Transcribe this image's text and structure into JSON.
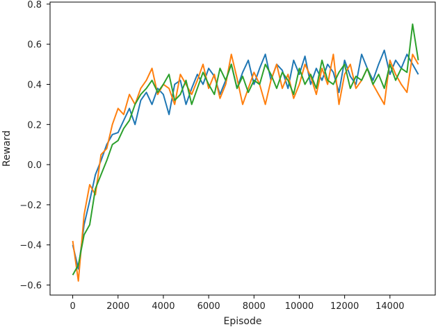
{
  "chart_data": {
    "type": "line",
    "title": "",
    "xlabel": "Episode",
    "ylabel": "Reward",
    "xlim": [
      -1000,
      16000
    ],
    "ylim": [
      -0.65,
      0.81
    ],
    "x_ticks": [
      0,
      2000,
      4000,
      6000,
      8000,
      10000,
      12000,
      14000
    ],
    "x_tick_labels": [
      "0",
      "2000",
      "4000",
      "6000",
      "8000",
      "10000",
      "12000",
      "14000"
    ],
    "y_ticks": [
      -0.6,
      -0.4,
      -0.2,
      0.0,
      0.2,
      0.4,
      0.6,
      0.8
    ],
    "y_tick_labels": [
      "−0.6",
      "−0.4",
      "−0.2",
      "0.0",
      "0.2",
      "0.4",
      "0.6",
      "0.8"
    ],
    "grid": false,
    "legend": "none",
    "x": [
      0,
      250,
      500,
      750,
      1000,
      1250,
      1500,
      1750,
      2000,
      2250,
      2500,
      2750,
      3000,
      3250,
      3500,
      3750,
      4000,
      4250,
      4500,
      4750,
      5000,
      5250,
      5500,
      5750,
      6000,
      6250,
      6500,
      6750,
      7000,
      7250,
      7500,
      7750,
      8000,
      8250,
      8500,
      8750,
      9000,
      9250,
      9500,
      9750,
      10000,
      10250,
      10500,
      10750,
      11000,
      11250,
      11500,
      11750,
      12000,
      12250,
      12500,
      12750,
      13000,
      13250,
      13500,
      13750,
      14000,
      14250,
      14500,
      14750,
      15000,
      15250
    ],
    "series": [
      {
        "color": "#1f77b4",
        "values": [
          -0.4,
          -0.52,
          -0.3,
          -0.18,
          -0.05,
          0.02,
          0.1,
          0.15,
          0.16,
          0.22,
          0.28,
          0.2,
          0.32,
          0.36,
          0.3,
          0.38,
          0.35,
          0.25,
          0.4,
          0.42,
          0.3,
          0.38,
          0.45,
          0.4,
          0.48,
          0.44,
          0.35,
          0.42,
          0.5,
          0.38,
          0.46,
          0.52,
          0.4,
          0.48,
          0.55,
          0.42,
          0.5,
          0.47,
          0.38,
          0.52,
          0.45,
          0.54,
          0.4,
          0.48,
          0.42,
          0.5,
          0.46,
          0.36,
          0.52,
          0.44,
          0.4,
          0.55,
          0.48,
          0.42,
          0.5,
          0.57,
          0.45,
          0.52,
          0.48,
          0.55,
          0.5,
          0.45
        ]
      },
      {
        "color": "#ff7f0e",
        "values": [
          -0.38,
          -0.58,
          -0.25,
          -0.1,
          -0.15,
          0.05,
          0.08,
          0.2,
          0.28,
          0.25,
          0.35,
          0.3,
          0.38,
          0.42,
          0.48,
          0.35,
          0.4,
          0.38,
          0.3,
          0.45,
          0.4,
          0.35,
          0.42,
          0.5,
          0.38,
          0.45,
          0.33,
          0.4,
          0.55,
          0.43,
          0.3,
          0.38,
          0.46,
          0.4,
          0.3,
          0.42,
          0.5,
          0.38,
          0.45,
          0.33,
          0.4,
          0.5,
          0.44,
          0.35,
          0.48,
          0.4,
          0.55,
          0.3,
          0.45,
          0.5,
          0.38,
          0.42,
          0.48,
          0.4,
          0.35,
          0.3,
          0.52,
          0.45,
          0.4,
          0.36,
          0.55,
          0.5
        ]
      },
      {
        "color": "#2ca02c",
        "values": [
          -0.55,
          -0.5,
          -0.35,
          -0.3,
          -0.12,
          -0.05,
          0.02,
          0.1,
          0.12,
          0.18,
          0.22,
          0.3,
          0.35,
          0.38,
          0.42,
          0.36,
          0.4,
          0.45,
          0.32,
          0.35,
          0.42,
          0.3,
          0.38,
          0.46,
          0.4,
          0.35,
          0.48,
          0.42,
          0.5,
          0.38,
          0.44,
          0.36,
          0.42,
          0.4,
          0.5,
          0.45,
          0.38,
          0.46,
          0.42,
          0.35,
          0.48,
          0.4,
          0.45,
          0.38,
          0.52,
          0.42,
          0.4,
          0.46,
          0.5,
          0.38,
          0.44,
          0.42,
          0.48,
          0.4,
          0.45,
          0.38,
          0.5,
          0.42,
          0.48,
          0.46,
          0.7,
          0.52
        ]
      }
    ]
  }
}
